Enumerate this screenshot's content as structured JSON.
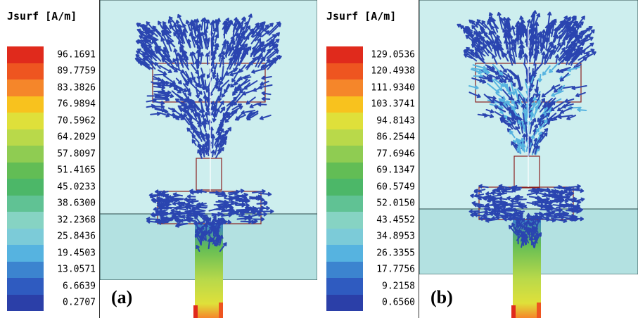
{
  "panels": [
    {
      "label": "(a)",
      "legend_title": "Jsurf [A/m]",
      "ticks": [
        "96.1691",
        "89.7759",
        "83.3826",
        "76.9894",
        "70.5962",
        "64.2029",
        "57.8097",
        "51.4165",
        "45.0233",
        "38.6300",
        "32.2368",
        "25.8436",
        "19.4503",
        "13.0571",
        "6.6639",
        "0.2707"
      ]
    },
    {
      "label": "(b)",
      "legend_title": "Jsurf [A/m]",
      "ticks": [
        "129.0536",
        "120.4938",
        "111.9340",
        "103.3741",
        "94.8143",
        "86.2544",
        "77.6946",
        "69.1347",
        "60.5749",
        "52.0150",
        "43.4552",
        "34.8953",
        "26.3355",
        "17.7756",
        "9.2158",
        "0.6560"
      ]
    }
  ],
  "colors": {
    "scale": [
      "#e02a1c",
      "#ee5520",
      "#f5862a",
      "#f8c21e",
      "#dfe03a",
      "#b9d94a",
      "#8fcc52",
      "#62bd55",
      "#4cb768",
      "#60c294",
      "#86d3c3",
      "#7ccbd8",
      "#56b3e0",
      "#3c84cf",
      "#2f5bc0",
      "#2b3fa8"
    ],
    "air": "#cdeeee",
    "substrate": "#b3e1e1",
    "arrows": "#2a45b0",
    "outline": "#8a2020"
  }
}
